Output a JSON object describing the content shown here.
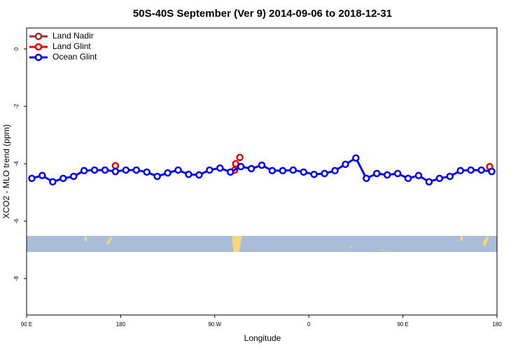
{
  "chart_data": {
    "type": "line",
    "title": "50S-40S September (Ver 9)   2014-09-06 to 2018-12-31",
    "x_label": "Longitude",
    "y_label": "XCO2 - MLO trend (ppm)",
    "xlim": [
      90,
      540
    ],
    "xticks": [
      {
        "value": 90,
        "label": "90 E"
      },
      {
        "value": 180,
        "label": "180"
      },
      {
        "value": 270,
        "label": "90 W"
      },
      {
        "value": 360,
        "label": "0"
      },
      {
        "value": 450,
        "label": "90 E"
      },
      {
        "value": 540,
        "label": "180"
      }
    ],
    "ylim": [
      -9.27,
      0.73
    ],
    "yticks": [
      -8,
      -6,
      -4,
      -2,
      0
    ],
    "legend": "top-left",
    "series": [
      {
        "name": "Land Nadir",
        "color": "#a52a2a",
        "mode": "lines+markers",
        "x": [],
        "values": []
      },
      {
        "name": "Land Glint",
        "color": "#ee0000",
        "mode": "markers",
        "x": [
          175,
          289,
          290,
          294,
          533
        ],
        "values": [
          -4.07,
          -4.22,
          -4.0,
          -3.78,
          -4.1
        ]
      },
      {
        "name": "Ocean Glint",
        "color": "#0000ee",
        "mode": "lines+markers",
        "x": [
          95,
          105,
          115,
          125,
          135,
          145,
          155,
          165,
          175,
          185,
          195,
          205,
          215,
          225,
          235,
          245,
          255,
          265,
          275,
          285,
          295,
          305,
          315,
          325,
          335,
          345,
          355,
          365,
          375,
          385,
          395,
          405,
          415,
          425,
          435,
          445,
          455,
          465,
          475,
          485,
          495,
          505,
          515,
          525,
          535
        ],
        "values": [
          -4.51,
          -4.41,
          -4.63,
          -4.51,
          -4.44,
          -4.24,
          -4.22,
          -4.22,
          -4.27,
          -4.22,
          -4.22,
          -4.29,
          -4.44,
          -4.32,
          -4.22,
          -4.37,
          -4.39,
          -4.22,
          -4.15,
          -4.29,
          -4.1,
          -4.17,
          -4.05,
          -4.24,
          -4.24,
          -4.22,
          -4.29,
          -4.37,
          -4.34,
          -4.24,
          -4.02,
          -3.8,
          -4.51,
          -4.34,
          -4.39,
          -4.34,
          -4.51,
          -4.41,
          -4.63,
          -4.51,
          -4.44,
          -4.24,
          -4.22,
          -4.22,
          -4.27
        ]
      }
    ]
  }
}
